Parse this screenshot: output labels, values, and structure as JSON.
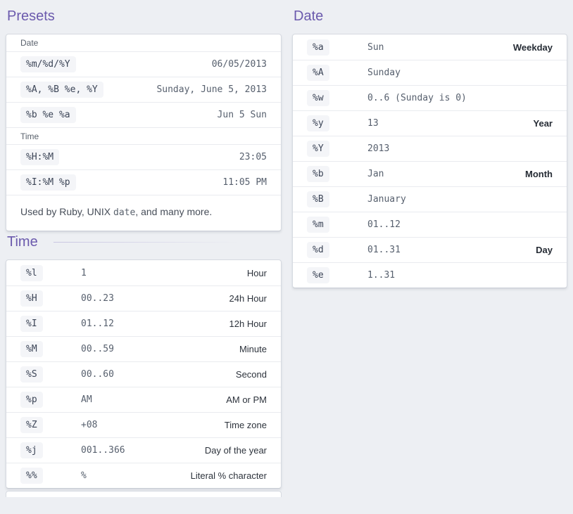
{
  "colors": {
    "accent_purple": "#6b5aad",
    "page_background": "#edeff3",
    "chip_background": "#f4f5f8",
    "value_text": "#57606e"
  },
  "presets": {
    "heading": "Presets",
    "date_group_label": "Date",
    "time_group_label": "Time",
    "date_rows": [
      {
        "code": "%m/%d/%Y",
        "value": "06/05/2013"
      },
      {
        "code": "%A, %B %e, %Y",
        "value": "Sunday, June 5, 2013"
      },
      {
        "code": "%b %e %a",
        "value": "Jun 5 Sun"
      }
    ],
    "time_rows": [
      {
        "code": "%H:%M",
        "value": "23:05"
      },
      {
        "code": "%I:%M %p",
        "value": "11:05 PM"
      }
    ],
    "footer": {
      "text_before": "Used by Ruby, UNIX ",
      "code": "date",
      "text_after": ", and many more."
    }
  },
  "time_table": {
    "heading": "Time",
    "rows": [
      {
        "code": "%l",
        "example": "1",
        "label": "Hour"
      },
      {
        "code": "%H",
        "example": "00..23",
        "label": "24h Hour"
      },
      {
        "code": "%I",
        "example": "01..12",
        "label": "12h Hour"
      },
      {
        "code": "%M",
        "example": "00..59",
        "label": "Minute"
      },
      {
        "code": "%S",
        "example": "00..60",
        "label": "Second"
      },
      {
        "code": "%p",
        "example": "AM",
        "label": "AM or PM"
      },
      {
        "code": "%Z",
        "example": "+08",
        "label": "Time zone"
      },
      {
        "code": "%j",
        "example": "001..366",
        "label": "Day of the year"
      },
      {
        "code": "%%",
        "example": "%",
        "label": "Literal % character"
      }
    ]
  },
  "date_table": {
    "heading": "Date",
    "rows": [
      {
        "code": "%a",
        "example": "Sun",
        "label": "Weekday"
      },
      {
        "code": "%A",
        "example": "Sunday",
        "label": ""
      },
      {
        "code": "%w",
        "example": "0..6 (Sunday is 0)",
        "label": ""
      },
      {
        "code": "%y",
        "example": "13",
        "label": "Year"
      },
      {
        "code": "%Y",
        "example": "2013",
        "label": ""
      },
      {
        "code": "%b",
        "example": "Jan",
        "label": "Month"
      },
      {
        "code": "%B",
        "example": "January",
        "label": ""
      },
      {
        "code": "%m",
        "example": "01..12",
        "label": ""
      },
      {
        "code": "%d",
        "example": "01..31",
        "label": "Day"
      },
      {
        "code": "%e",
        "example": "1..31",
        "label": ""
      }
    ]
  }
}
